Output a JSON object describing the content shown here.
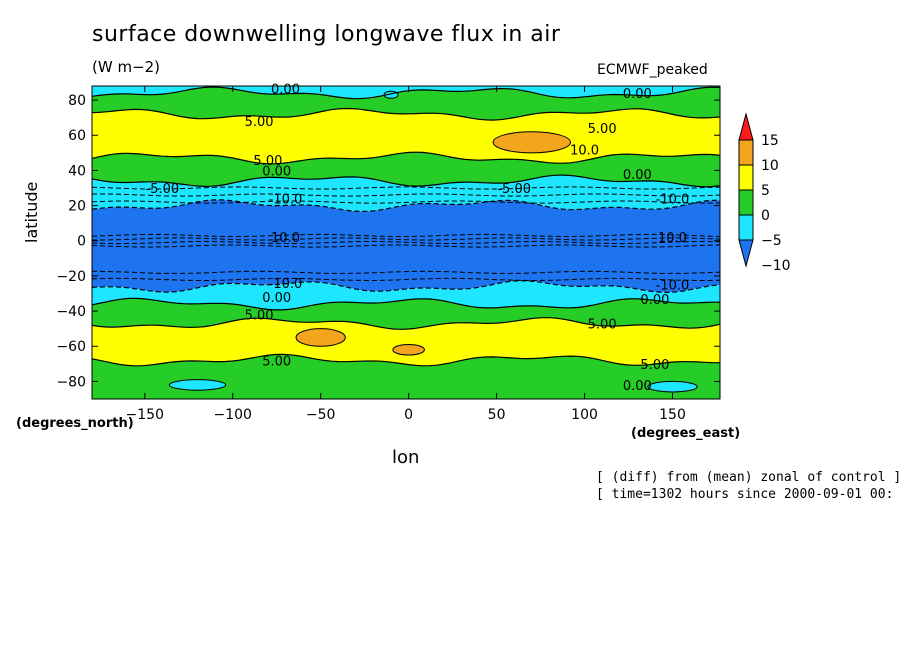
{
  "figure": {
    "title": "surface downwelling longwave flux in air",
    "units": "(W m−2)",
    "model": "ECMWF_peaked",
    "note_line1": "[ (diff) from (mean) zonal of control ]",
    "note_line2": "[ time=1302 hours since 2000-09-01 00:"
  },
  "chart_data": {
    "type": "heatmap",
    "title": "surface downwelling longwave flux in air",
    "xlabel": "lon",
    "ylabel": "latitude",
    "x_units": "(degrees_east)",
    "y_units": "(degrees_north)",
    "xlim": [
      -180,
      177
    ],
    "ylim": [
      -90,
      88
    ],
    "x_ticks": [
      -150,
      -100,
      -50,
      0,
      50,
      100,
      150
    ],
    "y_ticks": [
      -80,
      -60,
      -40,
      -20,
      0,
      20,
      40,
      60,
      80
    ],
    "colorbar": {
      "levels": [
        -10,
        -5,
        0,
        5,
        10,
        15
      ],
      "colors": [
        "#1e73ef",
        "#1ee6ff",
        "#26cd26",
        "#ffff00",
        "#f2a51d",
        "#ff1a1a"
      ],
      "extend": "both"
    },
    "contour_labels": [
      "0.00",
      "5.00",
      "-5.00",
      "10.0",
      "-10.0"
    ],
    "zonal_bands": [
      {
        "lat_from": 84,
        "lat_to": 88,
        "level": "-5"
      },
      {
        "lat_from": 72,
        "lat_to": 84,
        "level": "0"
      },
      {
        "lat_from": 47,
        "lat_to": 72,
        "level": "5"
      },
      {
        "lat_from": 34,
        "lat_to": 47,
        "level": "0"
      },
      {
        "lat_from": 20,
        "lat_to": 34,
        "level": "-5"
      },
      {
        "lat_from": -26,
        "lat_to": 20,
        "level": "-10"
      },
      {
        "lat_from": -36,
        "lat_to": -26,
        "level": "-5"
      },
      {
        "lat_from": -47,
        "lat_to": -36,
        "level": "0"
      },
      {
        "lat_from": -68,
        "lat_to": -47,
        "level": "5"
      },
      {
        "lat_from": -90,
        "lat_to": -68,
        "level": "0"
      }
    ],
    "anomaly_patches": [
      {
        "lon": 70,
        "lat": 56,
        "rlon": 22,
        "rlat": 6,
        "level": "10"
      },
      {
        "lon": -50,
        "lat": -55,
        "rlon": 14,
        "rlat": 5,
        "level": "10"
      },
      {
        "lon": 0,
        "lat": -62,
        "rlon": 9,
        "rlat": 3,
        "level": "10"
      },
      {
        "lon": -120,
        "lat": -82,
        "rlon": 16,
        "rlat": 3,
        "level": "-5"
      },
      {
        "lon": 150,
        "lat": -83,
        "rlon": 14,
        "rlat": 3,
        "level": "-5"
      },
      {
        "lon": -10,
        "lat": 83,
        "rlon": 4,
        "rlat": 2,
        "level": "-5"
      }
    ]
  }
}
